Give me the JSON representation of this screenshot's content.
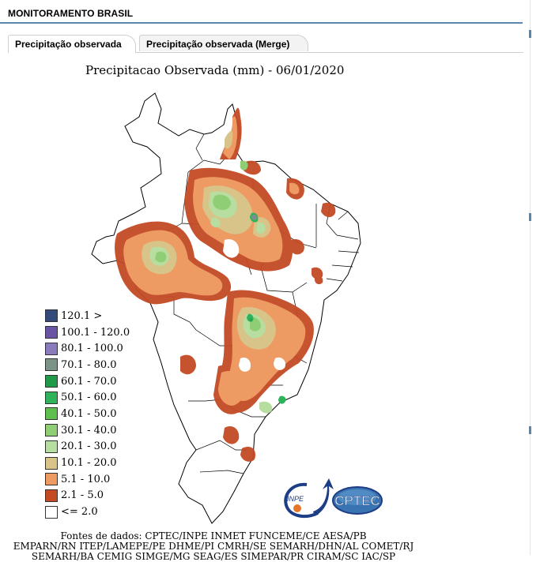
{
  "header": {
    "title": "MONITORAMENTO BRASIL"
  },
  "tabs": [
    {
      "label": "Precipitação observada",
      "active": true
    },
    {
      "label": "Precipitação observada (Merge)",
      "active": false
    }
  ],
  "map": {
    "title": "Precipitacao Observada (mm) - 06/01/2020",
    "legend": [
      {
        "label": "120.1 >",
        "color": "#344a7a"
      },
      {
        "label": "100.1 - 120.0",
        "color": "#6a55a5"
      },
      {
        "label": "80.1 - 100.0",
        "color": "#8a7cbc"
      },
      {
        "label": "70.1 - 80.0",
        "color": "#7c9488"
      },
      {
        "label": "60.1 - 70.0",
        "color": "#1f9a48"
      },
      {
        "label": "50.1 - 60.0",
        "color": "#2fb35a"
      },
      {
        "label": "40.1 - 50.0",
        "color": "#5fbf4e"
      },
      {
        "label": "30.1 - 40.0",
        "color": "#8fce74"
      },
      {
        "label": "20.1 - 30.0",
        "color": "#b7dda0"
      },
      {
        "label": "10.1 - 20.0",
        "color": "#d8c488"
      },
      {
        "label": "5.1 - 10.0",
        "color": "#ee9a63"
      },
      {
        "label": "2.1 - 5.0",
        "color": "#c44a24"
      },
      {
        "label": "<= 2.0",
        "color": "#ffffff"
      }
    ],
    "logo": {
      "inpe": "INPE",
      "cptec": "CPTEC"
    },
    "sources": [
      "Fontes de dados: CPTEC/INPE INMET FUNCEME/CE AESA/PB",
      "EMPARN/RN ITEP/LAMEPE/PE DHME/PI CMRH/SE SEMARH/DHN/AL COMET/RJ",
      "SEMARH/BA CEMIG SIMGE/MG SEAG/ES SIMEPAR/PR CIRAM/SC IAC/SP"
    ]
  }
}
